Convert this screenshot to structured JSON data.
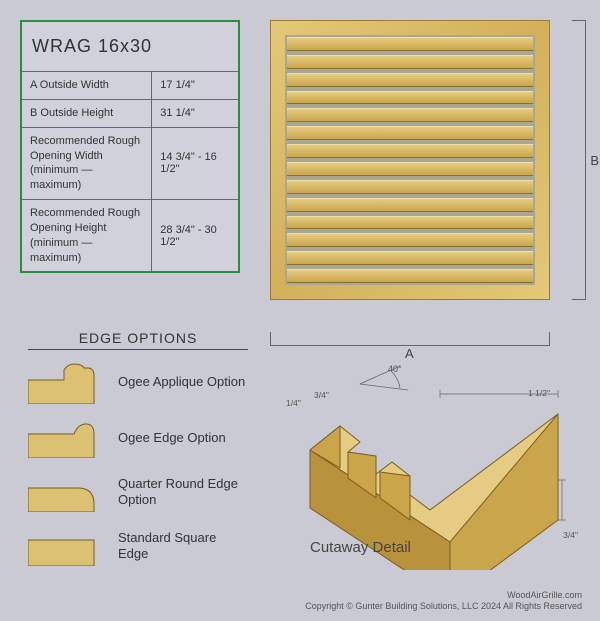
{
  "palette": {
    "page_bg": "#c9cad4",
    "table_border": "#2a8f3a",
    "wood_light": "#e3c978",
    "wood_dark": "#caa54a",
    "dim_line": "#666666",
    "text": "#333333"
  },
  "spec_table": {
    "title": "WRAG 16x30",
    "rows": [
      {
        "label": "A  Outside Width",
        "value": "17 1/4\""
      },
      {
        "label": "B  Outside Height",
        "value": "31 1/4\""
      },
      {
        "label": "Recommended Rough Opening Width (minimum — maximum)",
        "value": "14 3/4\" - 16 1/2\""
      },
      {
        "label": "Recommended Rough Opening Height (minimum — maximum)",
        "value": "28 3/4\" - 30 1/2\""
      }
    ]
  },
  "grille": {
    "louver_count": 14,
    "dim_width_label": "A",
    "dim_height_label": "B"
  },
  "edge_options": {
    "heading": "EDGE OPTIONS",
    "items": [
      {
        "label": "Ogee Applique Option"
      },
      {
        "label": "Ogee Edge Option"
      },
      {
        "label": "Quarter Round Edge Option"
      },
      {
        "label": "Standard Square Edge"
      }
    ]
  },
  "cutaway": {
    "title": "Cutaway Detail",
    "angle": "40°",
    "dims": {
      "louver_spacing": "1/4\"",
      "louver_width": "3/4\"",
      "frame_width": "1 1/2\"",
      "thickness": "3/4\""
    }
  },
  "footer": {
    "site": "WoodAirGrille.com",
    "copyright": "Copyright © Gunter Building Solutions, LLC 2024 All Rights Reserved"
  }
}
